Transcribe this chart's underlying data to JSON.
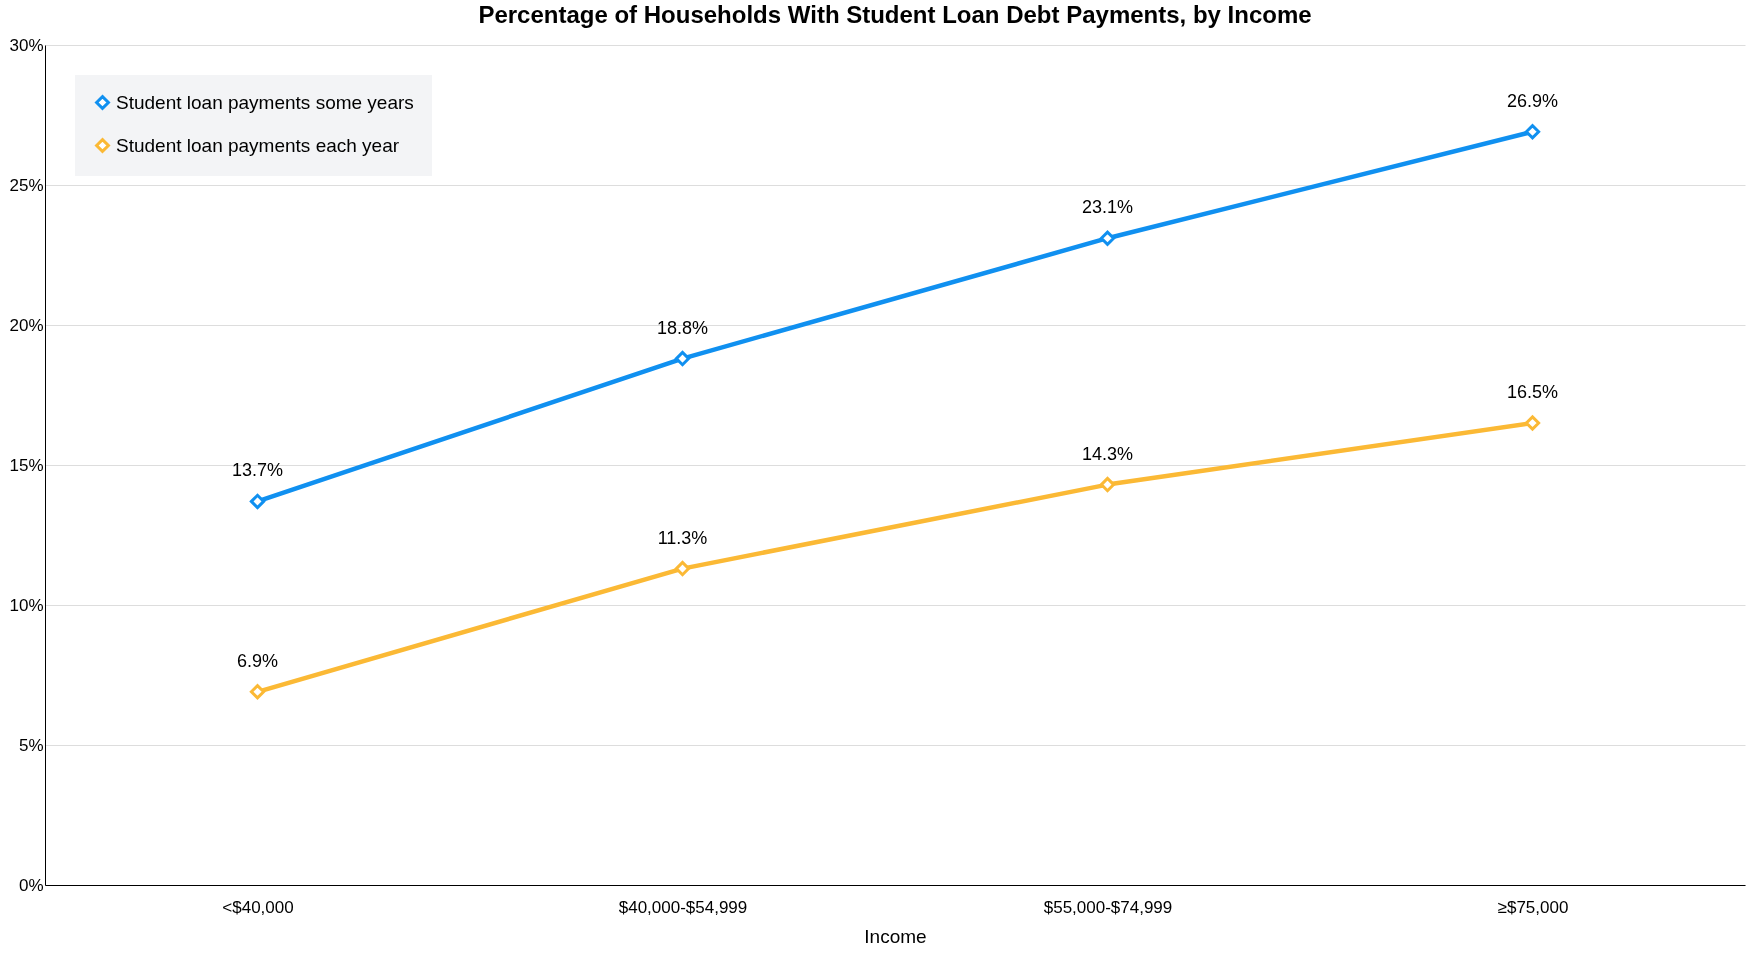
{
  "chart_data": {
    "type": "line",
    "title": "Percentage of Households With Student Loan Debt Payments, by Income",
    "xlabel": "Income",
    "categories": [
      "<$40,000",
      "$40,000-$54,999",
      "$55,000-$74,999",
      "≥$75,000"
    ],
    "series": [
      {
        "name": "Student loan payments some years",
        "color": "#1090f0",
        "values": [
          13.7,
          18.8,
          23.1,
          26.9
        ],
        "value_labels": [
          "13.7%",
          "18.8%",
          "23.1%",
          "26.9%"
        ]
      },
      {
        "name": "Student loan payments each year",
        "color": "#fbb935",
        "values": [
          6.9,
          11.3,
          14.3,
          16.5
        ],
        "value_labels": [
          "6.9%",
          "11.3%",
          "14.3%",
          "16.5%"
        ]
      }
    ],
    "ylim": [
      0,
      30
    ],
    "yticks": [
      {
        "value": 0,
        "label": "0%"
      },
      {
        "value": 5,
        "label": "5%"
      },
      {
        "value": 10,
        "label": "10%"
      },
      {
        "value": 15,
        "label": "15%"
      },
      {
        "value": 20,
        "label": "20%"
      },
      {
        "value": 25,
        "label": "25%"
      },
      {
        "value": 30,
        "label": "30%"
      }
    ],
    "grid": "y",
    "legend": "top left",
    "marker": "diamond",
    "line_style": "solid"
  }
}
